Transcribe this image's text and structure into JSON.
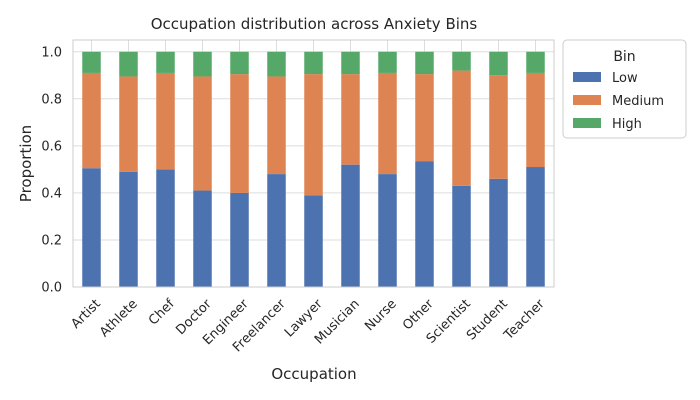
{
  "chart_data": {
    "type": "bar",
    "stacked": true,
    "title": "Occupation distribution across Anxiety Bins",
    "xlabel": "Occupation",
    "ylabel": "Proportion",
    "ylim": [
      0,
      1.05
    ],
    "yticks": [
      "0.0",
      "0.2",
      "0.4",
      "0.6",
      "0.8",
      "1.0"
    ],
    "ytick_values": [
      0,
      0.2,
      0.4,
      0.6,
      0.8,
      1.0
    ],
    "grid": true,
    "legend": {
      "title": "Bin",
      "placement": "outside-top-right"
    },
    "categories": [
      "Artist",
      "Athlete",
      "Chef",
      "Doctor",
      "Engineer",
      "Freelancer",
      "Lawyer",
      "Musician",
      "Nurse",
      "Other",
      "Scientist",
      "Student",
      "Teacher"
    ],
    "series": [
      {
        "name": "Low",
        "color": "#4c72b0",
        "values": [
          0.505,
          0.49,
          0.5,
          0.41,
          0.4,
          0.48,
          0.39,
          0.52,
          0.48,
          0.535,
          0.43,
          0.46,
          0.51
        ]
      },
      {
        "name": "Medium",
        "color": "#dd8452",
        "values": [
          0.405,
          0.405,
          0.41,
          0.485,
          0.505,
          0.415,
          0.515,
          0.385,
          0.43,
          0.37,
          0.49,
          0.44,
          0.4
        ]
      },
      {
        "name": "High",
        "color": "#55a868",
        "values": [
          0.09,
          0.105,
          0.09,
          0.105,
          0.095,
          0.105,
          0.095,
          0.095,
          0.09,
          0.095,
          0.08,
          0.1,
          0.09
        ]
      }
    ]
  }
}
